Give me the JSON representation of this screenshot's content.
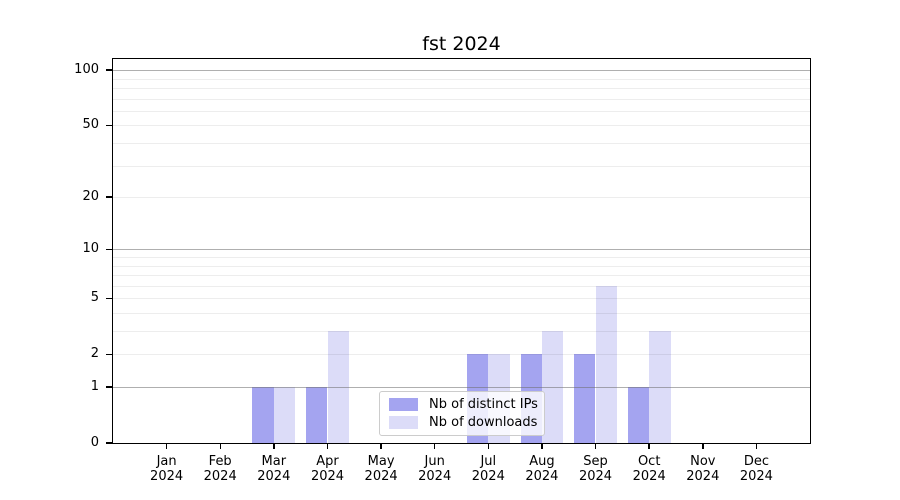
{
  "title": "fst 2024",
  "legend": {
    "items": [
      {
        "id": "distinct-ips",
        "label": "Nb of distinct IPs",
        "color": "#a4a4f0"
      },
      {
        "id": "downloads",
        "label": "Nb of downloads",
        "color": "#dcdcf8"
      }
    ]
  },
  "axes": {
    "y_tick_labels": [
      "0",
      "1",
      "2",
      "5",
      "10",
      "20",
      "50",
      "100"
    ],
    "y_tick_values": [
      0,
      1,
      2,
      5,
      10,
      20,
      50,
      100
    ],
    "y_major_grid_values": [
      1,
      10,
      100
    ],
    "y_minor_grid_values": [
      2,
      3,
      4,
      5,
      6,
      7,
      8,
      9,
      20,
      30,
      40,
      50,
      60,
      70,
      80,
      90
    ],
    "x_ticks": [
      {
        "month": "Jan",
        "year": "2024"
      },
      {
        "month": "Feb",
        "year": "2024"
      },
      {
        "month": "Mar",
        "year": "2024"
      },
      {
        "month": "Apr",
        "year": "2024"
      },
      {
        "month": "May",
        "year": "2024"
      },
      {
        "month": "Jun",
        "year": "2024"
      },
      {
        "month": "Jul",
        "year": "2024"
      },
      {
        "month": "Aug",
        "year": "2024"
      },
      {
        "month": "Sep",
        "year": "2024"
      },
      {
        "month": "Oct",
        "year": "2024"
      },
      {
        "month": "Nov",
        "year": "2024"
      },
      {
        "month": "Dec",
        "year": "2024"
      }
    ]
  },
  "chart_data": {
    "type": "bar",
    "title": "fst 2024",
    "categories": [
      "Jan 2024",
      "Feb 2024",
      "Mar 2024",
      "Apr 2024",
      "May 2024",
      "Jun 2024",
      "Jul 2024",
      "Aug 2024",
      "Sep 2024",
      "Oct 2024",
      "Nov 2024",
      "Dec 2024"
    ],
    "series": [
      {
        "name": "Nb of distinct IPs",
        "color": "#a4a4f0",
        "values": [
          0,
          0,
          1,
          1,
          0,
          0,
          2,
          2,
          2,
          1,
          0,
          0
        ]
      },
      {
        "name": "Nb of downloads",
        "color": "#dcdcf8",
        "values": [
          0,
          0,
          1,
          3,
          0,
          0,
          2,
          3,
          6,
          3,
          0,
          0
        ]
      }
    ],
    "yscale": "log1p",
    "ylim": [
      0,
      115
    ],
    "y_ticks": [
      0,
      1,
      2,
      5,
      10,
      20,
      50,
      100
    ],
    "xlabel": "",
    "ylabel": "",
    "grid": true,
    "legend_position": "inside-bottom-center"
  },
  "colors": {
    "background": "#ffffff",
    "spine": "#000000",
    "major_grid": "#c0c0c0",
    "minor_grid": "#ededed",
    "text": "#000000",
    "legend_border": "#cccccc"
  }
}
